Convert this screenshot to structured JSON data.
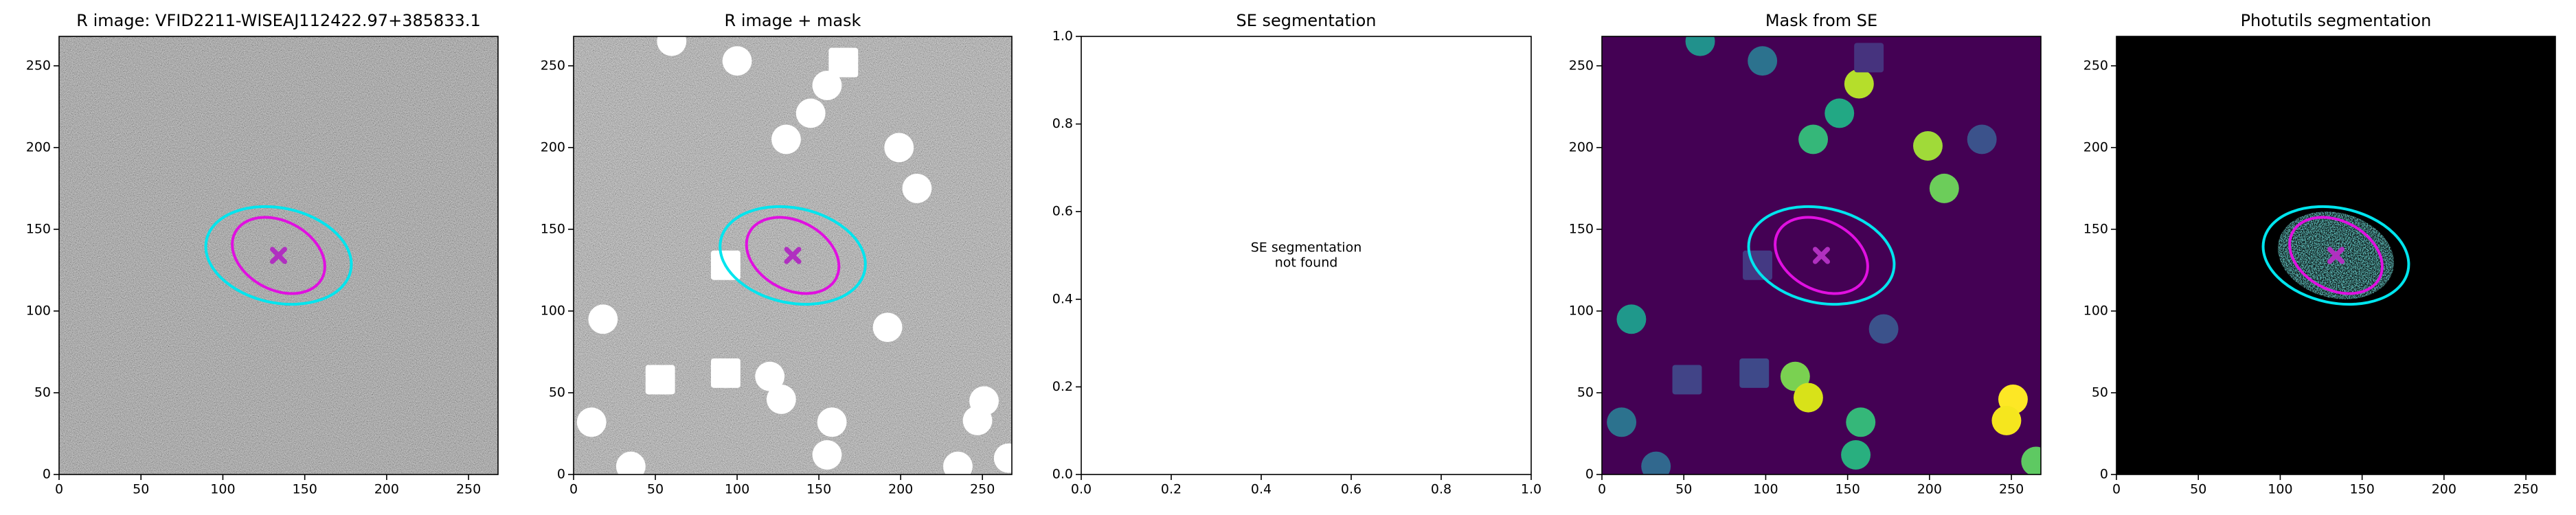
{
  "chart_data": [
    {
      "type": "image",
      "title": "R image: VFID2211-WISEAJ112422.97+385833.1",
      "image": "noise",
      "background": "#6a6a6a",
      "xlim": [
        0,
        268
      ],
      "ylim": [
        0,
        268
      ],
      "xticks": [
        0,
        50,
        100,
        150,
        200,
        250
      ],
      "yticks": [
        0,
        50,
        100,
        150,
        200,
        250
      ],
      "ellipses": [
        {
          "cx": 134,
          "cy": 134,
          "rx": 45,
          "ry": 29,
          "angle": -12,
          "color": "#00e5ee"
        },
        {
          "cx": 134,
          "cy": 134,
          "rx": 30,
          "ry": 21,
          "angle": -28,
          "color": "#e010e0"
        }
      ],
      "marker": {
        "x": 134,
        "y": 134,
        "color": "#b030c0"
      }
    },
    {
      "type": "image",
      "title": "R image + mask",
      "image": "noise",
      "background": "#8a8a8a",
      "xlim": [
        0,
        268
      ],
      "ylim": [
        0,
        268
      ],
      "xticks": [
        0,
        50,
        100,
        150,
        200,
        250
      ],
      "yticks": [
        0,
        50,
        100,
        150,
        200,
        250
      ],
      "mask_size": 9,
      "masks": [
        {
          "x": 60,
          "y": 265,
          "color": "#ffffff"
        },
        {
          "x": 100,
          "y": 253,
          "color": "#ffffff"
        },
        {
          "x": 155,
          "y": 238,
          "color": "#ffffff"
        },
        {
          "x": 145,
          "y": 221,
          "color": "#ffffff"
        },
        {
          "x": 130,
          "y": 205,
          "color": "#ffffff"
        },
        {
          "x": 199,
          "y": 200,
          "color": "#ffffff"
        },
        {
          "x": 210,
          "y": 175,
          "color": "#ffffff"
        },
        {
          "x": 18,
          "y": 95,
          "color": "#ffffff"
        },
        {
          "x": 192,
          "y": 90,
          "color": "#ffffff"
        },
        {
          "x": 120,
          "y": 60,
          "color": "#ffffff"
        },
        {
          "x": 127,
          "y": 46,
          "color": "#ffffff"
        },
        {
          "x": 11,
          "y": 32,
          "color": "#ffffff"
        },
        {
          "x": 158,
          "y": 32,
          "color": "#ffffff"
        },
        {
          "x": 251,
          "y": 45,
          "color": "#ffffff"
        },
        {
          "x": 247,
          "y": 33,
          "color": "#ffffff"
        },
        {
          "x": 35,
          "y": 5,
          "color": "#ffffff"
        },
        {
          "x": 155,
          "y": 12,
          "color": "#ffffff"
        },
        {
          "x": 235,
          "y": 5,
          "color": "#ffffff"
        },
        {
          "x": 266,
          "y": 10,
          "color": "#ffffff"
        }
      ],
      "mask_squares": [
        {
          "x": 165,
          "y": 252,
          "color": "#ffffff"
        },
        {
          "x": 93,
          "y": 128,
          "color": "#ffffff"
        },
        {
          "x": 53,
          "y": 58,
          "color": "#ffffff"
        },
        {
          "x": 93,
          "y": 62,
          "color": "#ffffff"
        }
      ],
      "ellipses": [
        {
          "cx": 134,
          "cy": 134,
          "rx": 45,
          "ry": 29,
          "angle": -12,
          "color": "#00e5ee"
        },
        {
          "cx": 134,
          "cy": 134,
          "rx": 30,
          "ry": 21,
          "angle": -28,
          "color": "#e010e0"
        }
      ],
      "marker": {
        "x": 134,
        "y": 134,
        "color": "#b030c0"
      }
    },
    {
      "type": "empty",
      "title": "SE segmentation",
      "xlim": [
        0,
        1
      ],
      "ylim": [
        0,
        1
      ],
      "xticks": [
        {
          "value": 0,
          "label": "0.0"
        },
        0.2,
        0.4,
        0.6,
        0.8,
        {
          "value": 1,
          "label": "1.0"
        }
      ],
      "yticks": [
        {
          "value": 0,
          "label": "0.0"
        },
        0.2,
        0.4,
        0.6,
        0.8,
        {
          "value": 1,
          "label": "1.0"
        }
      ],
      "annotation": {
        "x": 0.5,
        "y": 0.5,
        "lines": [
          "SE segmentation",
          "not found"
        ]
      }
    },
    {
      "type": "image",
      "title": "Mask from SE",
      "background": "#440154",
      "xlim": [
        0,
        268
      ],
      "ylim": [
        0,
        268
      ],
      "xticks": [
        0,
        50,
        100,
        150,
        200,
        250
      ],
      "yticks": [
        0,
        50,
        100,
        150,
        200,
        250
      ],
      "mask_size": 9,
      "masks": [
        {
          "x": 60,
          "y": 265,
          "color": "#21918c"
        },
        {
          "x": 98,
          "y": 253,
          "color": "#2c728e"
        },
        {
          "x": 157,
          "y": 239,
          "color": "#b5de2b"
        },
        {
          "x": 145,
          "y": 221,
          "color": "#22a884"
        },
        {
          "x": 129,
          "y": 205,
          "color": "#35b779"
        },
        {
          "x": 199,
          "y": 201,
          "color": "#a0da39"
        },
        {
          "x": 209,
          "y": 175,
          "color": "#6ccd5a"
        },
        {
          "x": 232,
          "y": 205,
          "color": "#3b528b"
        },
        {
          "x": 18,
          "y": 95,
          "color": "#1f988b"
        },
        {
          "x": 172,
          "y": 89,
          "color": "#3b528b"
        },
        {
          "x": 118,
          "y": 60,
          "color": "#7ad151"
        },
        {
          "x": 126,
          "y": 47,
          "color": "#d8e219"
        },
        {
          "x": 158,
          "y": 32,
          "color": "#35b779"
        },
        {
          "x": 12,
          "y": 32,
          "color": "#2c728e"
        },
        {
          "x": 33,
          "y": 5,
          "color": "#31688e"
        },
        {
          "x": 155,
          "y": 12,
          "color": "#29af7f"
        },
        {
          "x": 251,
          "y": 46,
          "color": "#fde725"
        },
        {
          "x": 247,
          "y": 33,
          "color": "#f5e61e"
        },
        {
          "x": 265,
          "y": 8,
          "color": "#5ec962"
        }
      ],
      "mask_squares": [
        {
          "x": 163,
          "y": 255,
          "color": "#46337e"
        },
        {
          "x": 95,
          "y": 128,
          "color": "#443983"
        },
        {
          "x": 52,
          "y": 58,
          "color": "#414487"
        },
        {
          "x": 93,
          "y": 62,
          "color": "#3e4989"
        }
      ],
      "ellipses": [
        {
          "cx": 134,
          "cy": 134,
          "rx": 45,
          "ry": 29,
          "angle": -12,
          "color": "#00e5ee"
        },
        {
          "cx": 134,
          "cy": 134,
          "rx": 30,
          "ry": 21,
          "angle": -28,
          "color": "#e010e0"
        }
      ],
      "marker": {
        "x": 134,
        "y": 134,
        "color": "#b030c0"
      }
    },
    {
      "type": "image",
      "title": "Photutils segmentation",
      "background": "#000000",
      "xlim": [
        0,
        268
      ],
      "ylim": [
        0,
        268
      ],
      "xticks": [
        0,
        50,
        100,
        150,
        200,
        250
      ],
      "yticks": [
        0,
        50,
        100,
        150,
        200,
        250
      ],
      "segments": [
        {
          "cx": 134,
          "cy": 134,
          "rx": 36,
          "ry": 26,
          "angle": -15,
          "color": "#21918c"
        }
      ],
      "ellipses": [
        {
          "cx": 134,
          "cy": 134,
          "rx": 45,
          "ry": 29,
          "angle": -12,
          "color": "#00e5ee"
        },
        {
          "cx": 134,
          "cy": 134,
          "rx": 30,
          "ry": 21,
          "angle": -28,
          "color": "#e010e0"
        }
      ],
      "marker": {
        "x": 134,
        "y": 134,
        "color": "#b030c0"
      }
    }
  ]
}
